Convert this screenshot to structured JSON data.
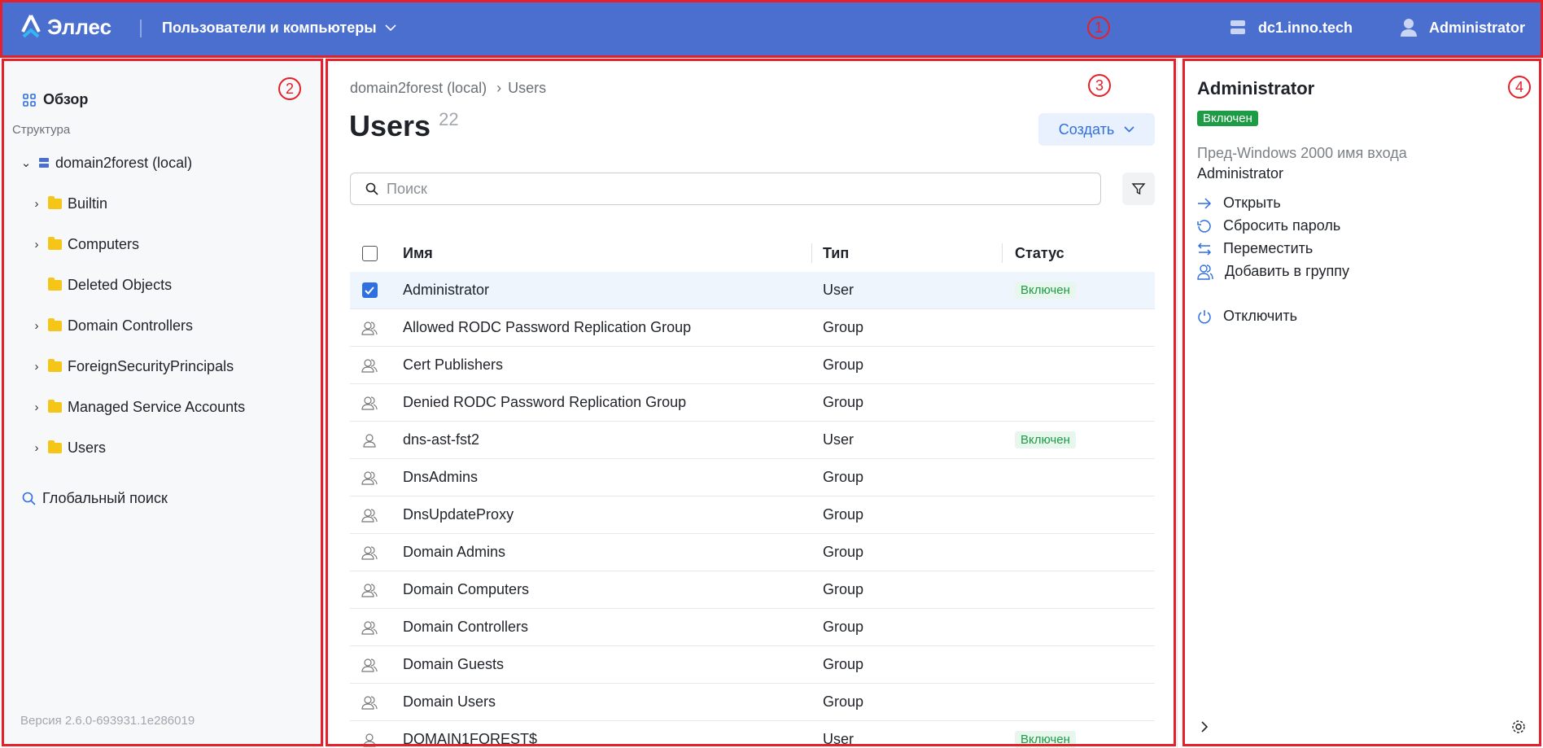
{
  "header": {
    "brand": "Эллес",
    "module": "Пользователи и компьютеры",
    "server": "dc1.inno.tech",
    "user": "Administrator",
    "bg": "#4a6fcf"
  },
  "sidebar": {
    "overview": "Обзор",
    "structure_label": "Структура",
    "root": "domain2forest (local)",
    "items": [
      {
        "label": "Builtin",
        "expandable": true
      },
      {
        "label": "Computers",
        "expandable": true
      },
      {
        "label": "Deleted Objects",
        "expandable": false
      },
      {
        "label": "Domain Controllers",
        "expandable": true
      },
      {
        "label": "ForeignSecurityPrincipals",
        "expandable": true
      },
      {
        "label": "Managed Service Accounts",
        "expandable": true
      },
      {
        "label": "Users",
        "expandable": true
      }
    ],
    "global_search": "Глобальный поиск",
    "version": "Версия 2.6.0-693931.1e286019"
  },
  "main": {
    "breadcrumb": [
      "domain2forest (local)",
      "Users"
    ],
    "title": "Users",
    "count": "22",
    "create_label": "Создать",
    "search_placeholder": "Поиск",
    "columns": [
      "Имя",
      "Тип",
      "Статус"
    ],
    "rows": [
      {
        "name": "Administrator",
        "type": "User",
        "status": "Включен",
        "selected": true
      },
      {
        "name": "Allowed RODC Password Replication Group",
        "type": "Group",
        "status": ""
      },
      {
        "name": "Cert Publishers",
        "type": "Group",
        "status": ""
      },
      {
        "name": "Denied RODC Password Replication Group",
        "type": "Group",
        "status": ""
      },
      {
        "name": "dns-ast-fst2",
        "type": "User",
        "status": "Включен"
      },
      {
        "name": "DnsAdmins",
        "type": "Group",
        "status": ""
      },
      {
        "name": "DnsUpdateProxy",
        "type": "Group",
        "status": ""
      },
      {
        "name": "Domain Admins",
        "type": "Group",
        "status": ""
      },
      {
        "name": "Domain Computers",
        "type": "Group",
        "status": ""
      },
      {
        "name": "Domain Controllers",
        "type": "Group",
        "status": ""
      },
      {
        "name": "Domain Guests",
        "type": "Group",
        "status": ""
      },
      {
        "name": "Domain Users",
        "type": "Group",
        "status": ""
      },
      {
        "name": "DOMAIN1FOREST$",
        "type": "User",
        "status": "Включен"
      }
    ]
  },
  "details": {
    "title": "Administrator",
    "status": "Включен",
    "field_label": "Пред-Windows 2000 имя входа",
    "field_value": "Administrator",
    "actions": [
      "Открыть",
      "Сбросить пароль",
      "Переместить",
      "Добавить в группу"
    ],
    "disable": "Отключить"
  },
  "annotations": [
    "1",
    "2",
    "3",
    "4"
  ]
}
